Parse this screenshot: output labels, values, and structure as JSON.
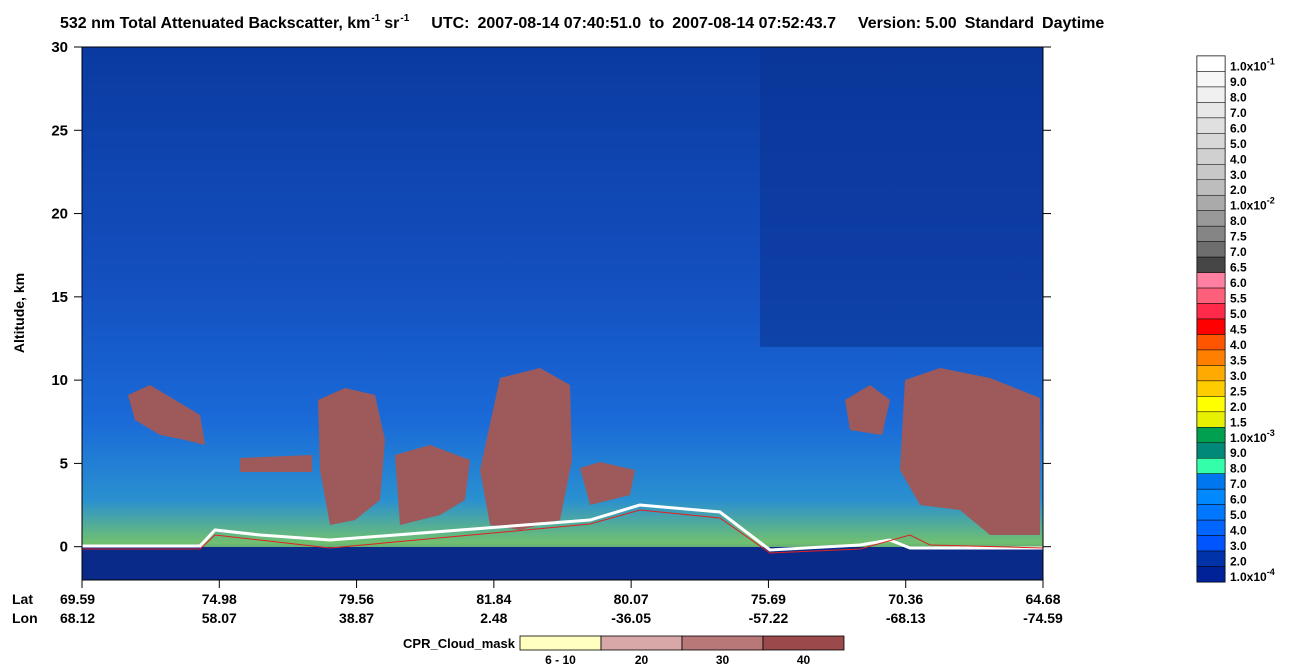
{
  "chart_data": {
    "type": "heatmap",
    "title_parts": [
      "532 nm Total Attenuated Backscatter, km",
      "-1",
      "sr",
      "-1",
      "UTC:",
      "2007-08-14 07:40:51.0",
      "to",
      "2007-08-14 07:52:43.7",
      "Version: 5.00",
      "Standard",
      "Daytime"
    ],
    "ylabel": "Altitude, km",
    "ylim": [
      -2,
      30
    ],
    "yticks": [
      0,
      5,
      10,
      15,
      20,
      25,
      30
    ],
    "lat_label": "Lat",
    "lon_label": "Lon",
    "lat": [
      69.59,
      74.98,
      79.56,
      81.84,
      80.07,
      75.69,
      70.36,
      64.68
    ],
    "lon": [
      68.12,
      58.07,
      38.87,
      2.48,
      -36.05,
      -57.22,
      -68.13,
      -74.59
    ],
    "colorbar": [
      {
        "value": 0.1,
        "label": "1.0x10",
        "exp": "-1"
      },
      {
        "value": 0.09,
        "label": "9.0"
      },
      {
        "value": 0.08,
        "label": "8.0"
      },
      {
        "value": 0.07,
        "label": "7.0"
      },
      {
        "value": 0.06,
        "label": "6.0"
      },
      {
        "value": 0.05,
        "label": "5.0"
      },
      {
        "value": 0.04,
        "label": "4.0"
      },
      {
        "value": 0.03,
        "label": "3.0"
      },
      {
        "value": 0.02,
        "label": "2.0"
      },
      {
        "value": 0.01,
        "label": "1.0x10",
        "exp": "-2"
      },
      {
        "value": 0.008,
        "label": "8.0"
      },
      {
        "value": 0.0075,
        "label": "7.5"
      },
      {
        "value": 0.007,
        "label": "7.0"
      },
      {
        "value": 0.0065,
        "label": "6.5"
      },
      {
        "value": 0.006,
        "label": "6.0"
      },
      {
        "value": 0.0055,
        "label": "5.5"
      },
      {
        "value": 0.005,
        "label": "5.0"
      },
      {
        "value": 0.0045,
        "label": "4.5"
      },
      {
        "value": 0.004,
        "label": "4.0"
      },
      {
        "value": 0.0035,
        "label": "3.5"
      },
      {
        "value": 0.003,
        "label": "3.0"
      },
      {
        "value": 0.0025,
        "label": "2.5"
      },
      {
        "value": 0.002,
        "label": "2.0"
      },
      {
        "value": 0.0015,
        "label": "1.5"
      },
      {
        "value": 0.001,
        "label": "1.0x10",
        "exp": "-3"
      },
      {
        "value": 0.0009,
        "label": "9.0"
      },
      {
        "value": 0.0008,
        "label": "8.0"
      },
      {
        "value": 0.0007,
        "label": "7.0"
      },
      {
        "value": 0.0006,
        "label": "6.0"
      },
      {
        "value": 0.0005,
        "label": "5.0"
      },
      {
        "value": 0.0004,
        "label": "4.0"
      },
      {
        "value": 0.0003,
        "label": "3.0"
      },
      {
        "value": 0.0002,
        "label": "2.0"
      },
      {
        "value": 0.0001,
        "label": "1.0x10",
        "exp": "-4"
      }
    ],
    "colorbar_colors": [
      "#ffffff",
      "#f7f7f7",
      "#f0f0f0",
      "#e8e8e8",
      "#e0e0e0",
      "#d8d8d8",
      "#d0d0d0",
      "#c8c8c8",
      "#bdbdbd",
      "#aaaaaa",
      "#999999",
      "#858585",
      "#6e6e6e",
      "#464646",
      "#ff7fa0",
      "#ff5f7a",
      "#ff2a4a",
      "#ff0000",
      "#ff5500",
      "#ff8000",
      "#ffaa00",
      "#ffcc00",
      "#ffff00",
      "#e6f000",
      "#00a050",
      "#008878",
      "#33ffaa",
      "#0077ee",
      "#0088ff",
      "#0077ff",
      "#0066ff",
      "#0055ff",
      "#0033aa",
      "#002299"
    ],
    "mask_label": "CPR_Cloud_mask",
    "mask_categories": [
      "6 - 10",
      "20",
      "30",
      "40"
    ],
    "mask_colors": [
      "#ffffc0",
      "#d8a8a8",
      "#b87878",
      "#9a4a4a"
    ]
  }
}
